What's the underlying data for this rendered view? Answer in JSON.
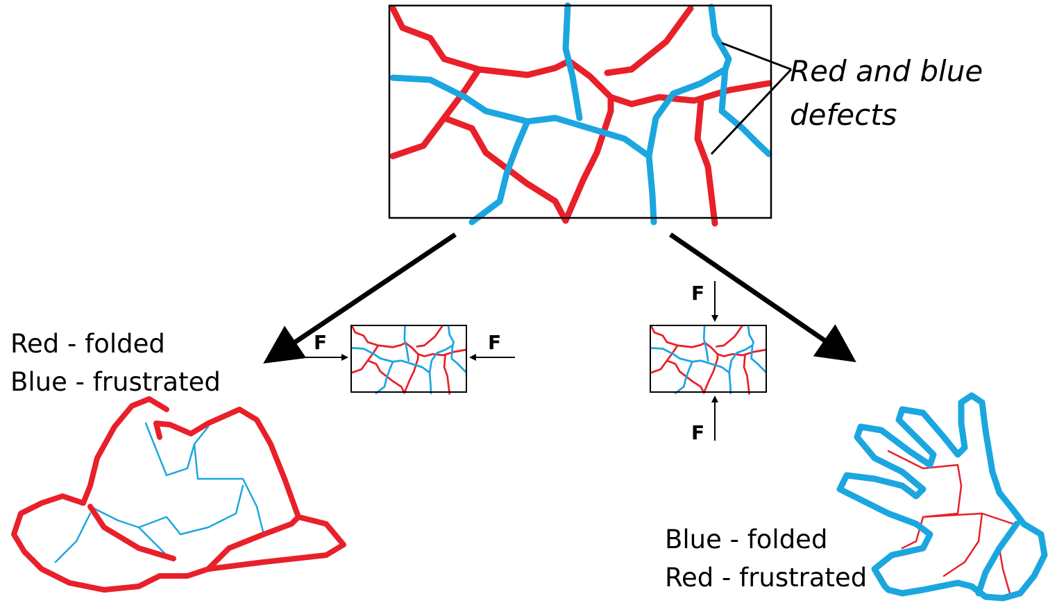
{
  "top_panel": {
    "label_lines": [
      "Red and blue",
      "defects"
    ]
  },
  "left_branch": {
    "force_labels": [
      "F",
      "F"
    ],
    "caption_lines": [
      "Red - folded",
      "Blue - frustrated"
    ]
  },
  "right_branch": {
    "force_labels": [
      "F",
      "F"
    ],
    "caption_lines": [
      "Blue - folded",
      "Red - frustrated"
    ]
  }
}
